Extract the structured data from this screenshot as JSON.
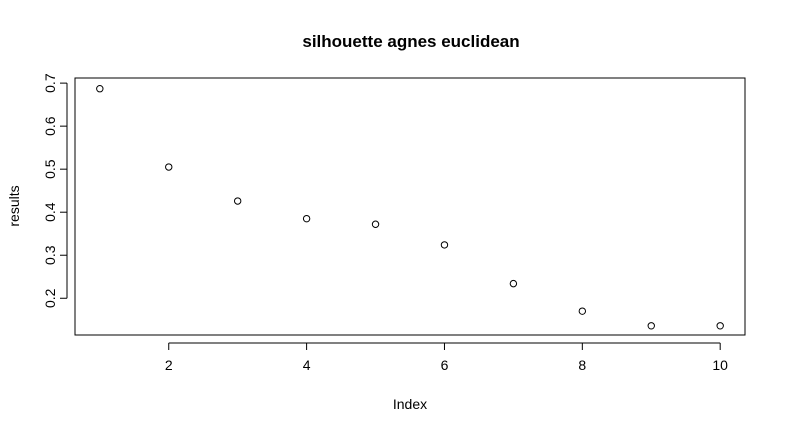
{
  "chart_data": {
    "type": "scatter",
    "title": "silhouette agnes euclidean",
    "xlabel": "Index",
    "ylabel": "results",
    "xlim": [
      0.64,
      10.36
    ],
    "ylim": [
      0.1146,
      0.7119
    ],
    "x_ticks": [
      2,
      4,
      6,
      8,
      10
    ],
    "y_ticks": [
      0.2,
      0.3,
      0.4,
      0.5,
      0.6,
      0.7
    ],
    "x_tick_labels": [
      "2",
      "4",
      "6",
      "8",
      "10"
    ],
    "y_tick_labels": [
      "0.2",
      "0.3",
      "0.4",
      "0.5",
      "0.6",
      "0.7"
    ],
    "marker": "open-circle",
    "grid": false,
    "series": [
      {
        "x": [
          1,
          2,
          3,
          4,
          5,
          6,
          7,
          8,
          9,
          10
        ],
        "y": [
          0.687,
          0.505,
          0.426,
          0.385,
          0.372,
          0.324,
          0.234,
          0.17,
          0.136,
          0.136
        ]
      }
    ]
  }
}
